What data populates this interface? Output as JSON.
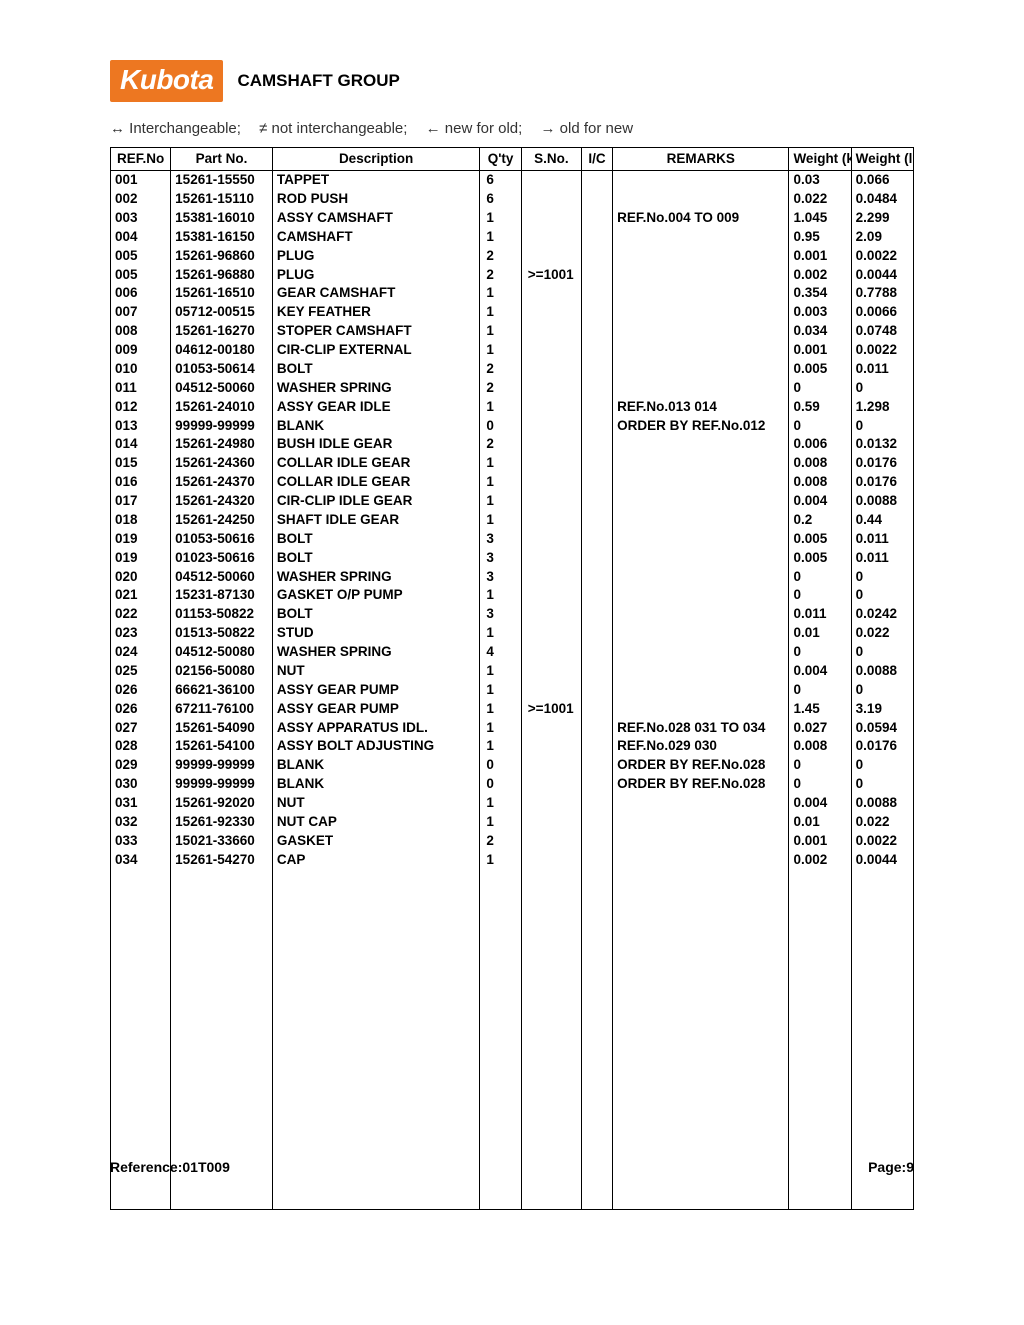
{
  "header": {
    "logo_text": "Kubota",
    "title": "CAMSHAFT GROUP"
  },
  "legend": {
    "interchangeable": "↔ Interchangeable;",
    "not_interchangeable": "≠ not interchangeable;",
    "new_for_old": "← new for old;",
    "old_for_new": "→ old for new"
  },
  "columns": {
    "ref": "REF.No",
    "part": "Part No.",
    "desc": "Description",
    "qty": "Q'ty",
    "sno": "S.No.",
    "ic": "I/C",
    "remarks": "REMARKS",
    "wkg": "Weight (kgf)",
    "wlb": "Weight (lb)"
  },
  "rows": [
    {
      "ref": "001",
      "part": "15261-15550",
      "desc": "TAPPET",
      "qty": "6",
      "sno": "",
      "ic": "",
      "rem": "",
      "wkg": "0.03",
      "wlb": "0.066"
    },
    {
      "ref": "002",
      "part": "15261-15110",
      "desc": "ROD PUSH",
      "qty": "6",
      "sno": "",
      "ic": "",
      "rem": "",
      "wkg": "0.022",
      "wlb": "0.0484"
    },
    {
      "ref": "003",
      "part": "15381-16010",
      "desc": "ASSY CAMSHAFT",
      "qty": "1",
      "sno": "",
      "ic": "",
      "rem": "REF.No.004 TO 009",
      "wkg": "1.045",
      "wlb": "2.299"
    },
    {
      "ref": "004",
      "part": "15381-16150",
      "desc": "CAMSHAFT",
      "qty": "1",
      "sno": "",
      "ic": "",
      "rem": "",
      "wkg": "0.95",
      "wlb": "2.09"
    },
    {
      "ref": "005",
      "part": "15261-96860",
      "desc": "PLUG",
      "qty": "2",
      "sno": "",
      "ic": "",
      "rem": "",
      "wkg": "0.001",
      "wlb": "0.0022"
    },
    {
      "ref": "005",
      "part": "15261-96880",
      "desc": "PLUG",
      "qty": "2",
      "sno": ">=1001",
      "ic": "",
      "rem": "",
      "wkg": "0.002",
      "wlb": "0.0044"
    },
    {
      "ref": "006",
      "part": "15261-16510",
      "desc": "GEAR CAMSHAFT",
      "qty": "1",
      "sno": "",
      "ic": "",
      "rem": "",
      "wkg": "0.354",
      "wlb": "0.7788"
    },
    {
      "ref": "007",
      "part": "05712-00515",
      "desc": "KEY FEATHER",
      "qty": "1",
      "sno": "",
      "ic": "",
      "rem": "",
      "wkg": "0.003",
      "wlb": "0.0066"
    },
    {
      "ref": "008",
      "part": "15261-16270",
      "desc": "STOPER CAMSHAFT",
      "qty": "1",
      "sno": "",
      "ic": "",
      "rem": "",
      "wkg": "0.034",
      "wlb": "0.0748"
    },
    {
      "ref": "009",
      "part": "04612-00180",
      "desc": "CIR-CLIP EXTERNAL",
      "qty": "1",
      "sno": "",
      "ic": "",
      "rem": "",
      "wkg": "0.001",
      "wlb": "0.0022"
    },
    {
      "ref": "010",
      "part": "01053-50614",
      "desc": "BOLT",
      "qty": "2",
      "sno": "",
      "ic": "",
      "rem": "",
      "wkg": "0.005",
      "wlb": "0.011"
    },
    {
      "ref": "011",
      "part": "04512-50060",
      "desc": "WASHER SPRING",
      "qty": "2",
      "sno": "",
      "ic": "",
      "rem": "",
      "wkg": "0",
      "wlb": "0"
    },
    {
      "ref": "012",
      "part": "15261-24010",
      "desc": "ASSY GEAR IDLE",
      "qty": "1",
      "sno": "",
      "ic": "",
      "rem": "REF.No.013 014",
      "wkg": "0.59",
      "wlb": "1.298"
    },
    {
      "ref": "013",
      "part": "99999-99999",
      "desc": "BLANK",
      "qty": "0",
      "sno": "",
      "ic": "",
      "rem": "ORDER BY REF.No.012",
      "wkg": "0",
      "wlb": "0"
    },
    {
      "ref": "014",
      "part": "15261-24980",
      "desc": "BUSH IDLE GEAR",
      "qty": "2",
      "sno": "",
      "ic": "",
      "rem": "",
      "wkg": "0.006",
      "wlb": "0.0132"
    },
    {
      "ref": "015",
      "part": "15261-24360",
      "desc": "COLLAR IDLE GEAR",
      "qty": "1",
      "sno": "",
      "ic": "",
      "rem": "",
      "wkg": "0.008",
      "wlb": "0.0176"
    },
    {
      "ref": "016",
      "part": "15261-24370",
      "desc": "COLLAR IDLE GEAR",
      "qty": "1",
      "sno": "",
      "ic": "",
      "rem": "",
      "wkg": "0.008",
      "wlb": "0.0176"
    },
    {
      "ref": "017",
      "part": "15261-24320",
      "desc": "CIR-CLIP IDLE GEAR",
      "qty": "1",
      "sno": "",
      "ic": "",
      "rem": "",
      "wkg": "0.004",
      "wlb": "0.0088"
    },
    {
      "ref": "018",
      "part": "15261-24250",
      "desc": "SHAFT IDLE GEAR",
      "qty": "1",
      "sno": "",
      "ic": "",
      "rem": "",
      "wkg": "0.2",
      "wlb": "0.44"
    },
    {
      "ref": "019",
      "part": "01053-50616",
      "desc": "BOLT",
      "qty": "3",
      "sno": "",
      "ic": "",
      "rem": "",
      "wkg": "0.005",
      "wlb": "0.011"
    },
    {
      "ref": "019",
      "part": "01023-50616",
      "desc": "BOLT",
      "qty": "3",
      "sno": "",
      "ic": "",
      "rem": "",
      "wkg": "0.005",
      "wlb": "0.011"
    },
    {
      "ref": "020",
      "part": "04512-50060",
      "desc": "WASHER SPRING",
      "qty": "3",
      "sno": "",
      "ic": "",
      "rem": "",
      "wkg": "0",
      "wlb": "0"
    },
    {
      "ref": "021",
      "part": "15231-87130",
      "desc": "GASKET O/P PUMP",
      "qty": "1",
      "sno": "",
      "ic": "",
      "rem": "",
      "wkg": "0",
      "wlb": "0"
    },
    {
      "ref": "022",
      "part": "01153-50822",
      "desc": "BOLT",
      "qty": "3",
      "sno": "",
      "ic": "",
      "rem": "",
      "wkg": "0.011",
      "wlb": "0.0242"
    },
    {
      "ref": "023",
      "part": "01513-50822",
      "desc": "STUD",
      "qty": "1",
      "sno": "",
      "ic": "",
      "rem": "",
      "wkg": "0.01",
      "wlb": "0.022"
    },
    {
      "ref": "024",
      "part": "04512-50080",
      "desc": "WASHER SPRING",
      "qty": "4",
      "sno": "",
      "ic": "",
      "rem": "",
      "wkg": "0",
      "wlb": "0"
    },
    {
      "ref": "025",
      "part": "02156-50080",
      "desc": "NUT",
      "qty": "1",
      "sno": "",
      "ic": "",
      "rem": "",
      "wkg": "0.004",
      "wlb": "0.0088"
    },
    {
      "ref": "026",
      "part": "66621-36100",
      "desc": "ASSY GEAR PUMP",
      "qty": "1",
      "sno": "",
      "ic": "",
      "rem": "",
      "wkg": "0",
      "wlb": "0"
    },
    {
      "ref": "026",
      "part": "67211-76100",
      "desc": "ASSY GEAR PUMP",
      "qty": "1",
      "sno": ">=1001",
      "ic": "",
      "rem": "",
      "wkg": "1.45",
      "wlb": "3.19"
    },
    {
      "ref": "027",
      "part": "15261-54090",
      "desc": "ASSY APPARATUS IDL.",
      "qty": "1",
      "sno": "",
      "ic": "",
      "rem": "REF.No.028 031 TO 034",
      "wkg": "0.027",
      "wlb": "0.0594"
    },
    {
      "ref": "028",
      "part": "15261-54100",
      "desc": "ASSY BOLT ADJUSTING",
      "qty": "1",
      "sno": "",
      "ic": "",
      "rem": "REF.No.029 030",
      "wkg": "0.008",
      "wlb": "0.0176"
    },
    {
      "ref": "029",
      "part": "99999-99999",
      "desc": "BLANK",
      "qty": "0",
      "sno": "",
      "ic": "",
      "rem": "ORDER BY REF.No.028",
      "wkg": "0",
      "wlb": "0"
    },
    {
      "ref": "030",
      "part": "99999-99999",
      "desc": "BLANK",
      "qty": "0",
      "sno": "",
      "ic": "",
      "rem": "ORDER BY REF.No.028",
      "wkg": "0",
      "wlb": "0"
    },
    {
      "ref": "031",
      "part": "15261-92020",
      "desc": "NUT",
      "qty": "1",
      "sno": "",
      "ic": "",
      "rem": "",
      "wkg": "0.004",
      "wlb": "0.0088"
    },
    {
      "ref": "032",
      "part": "15261-92330",
      "desc": "NUT CAP",
      "qty": "1",
      "sno": "",
      "ic": "",
      "rem": "",
      "wkg": "0.01",
      "wlb": "0.022"
    },
    {
      "ref": "033",
      "part": "15021-33660",
      "desc": "GASKET",
      "qty": "2",
      "sno": "",
      "ic": "",
      "rem": "",
      "wkg": "0.001",
      "wlb": "0.0022"
    },
    {
      "ref": "034",
      "part": "15261-54270",
      "desc": "CAP",
      "qty": "1",
      "sno": "",
      "ic": "",
      "rem": "",
      "wkg": "0.002",
      "wlb": "0.0044"
    }
  ],
  "footer": {
    "reference_label": "Reference:",
    "reference_value": "01T009",
    "page_label": "Page:",
    "page_value": "9"
  }
}
